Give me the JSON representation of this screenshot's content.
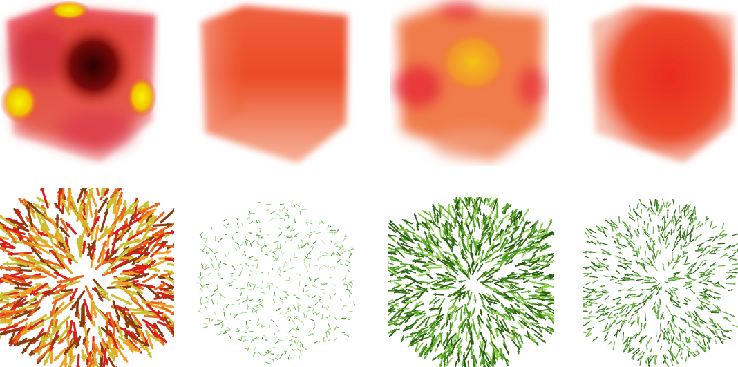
{
  "figure": {
    "rows": [
      {
        "kind": "volume-rendering",
        "panels": [
          {
            "id": "vol-1",
            "palette": "dark-red-yellow-hotspots",
            "colors": {
              "base": "#e8402a",
              "dark": "#3a0000",
              "hot": "#f2f000",
              "edge": "#f3a0a0"
            }
          },
          {
            "id": "vol-2",
            "palette": "uniform-orange",
            "colors": {
              "base": "#ee5a2c",
              "edge": "#f7b39a"
            }
          },
          {
            "id": "vol-3",
            "palette": "orange-yellow-center",
            "colors": {
              "base": "#ef6a2a",
              "hot": "#f4c21a",
              "red": "#e8303a",
              "edge": "#f7b39a"
            }
          },
          {
            "id": "vol-4",
            "palette": "uniform-red-orange",
            "colors": {
              "base": "#ea3a26",
              "edge": "#f6b09c"
            }
          }
        ]
      },
      {
        "kind": "vector-glyph-field",
        "panels": [
          {
            "id": "vec-1",
            "palette": "red-orange-yellow-arrows",
            "density": "high",
            "colors": [
              "#d9201a",
              "#e8661a",
              "#f0a020",
              "#8a3a10",
              "#c9c030"
            ]
          },
          {
            "id": "vec-2",
            "palette": "sparse-light-green",
            "density": "low",
            "colors": [
              "#7cc45a",
              "#4f9a2e",
              "#a7d98b"
            ]
          },
          {
            "id": "vec-3",
            "palette": "dense-green",
            "density": "high",
            "colors": [
              "#5aa82a",
              "#3c7d1a",
              "#8ccc4a",
              "#2a5a10"
            ]
          },
          {
            "id": "vec-4",
            "palette": "medium-green",
            "density": "medium",
            "colors": [
              "#4f9a2e",
              "#6fb84a",
              "#2f6a18"
            ]
          }
        ]
      }
    ]
  }
}
